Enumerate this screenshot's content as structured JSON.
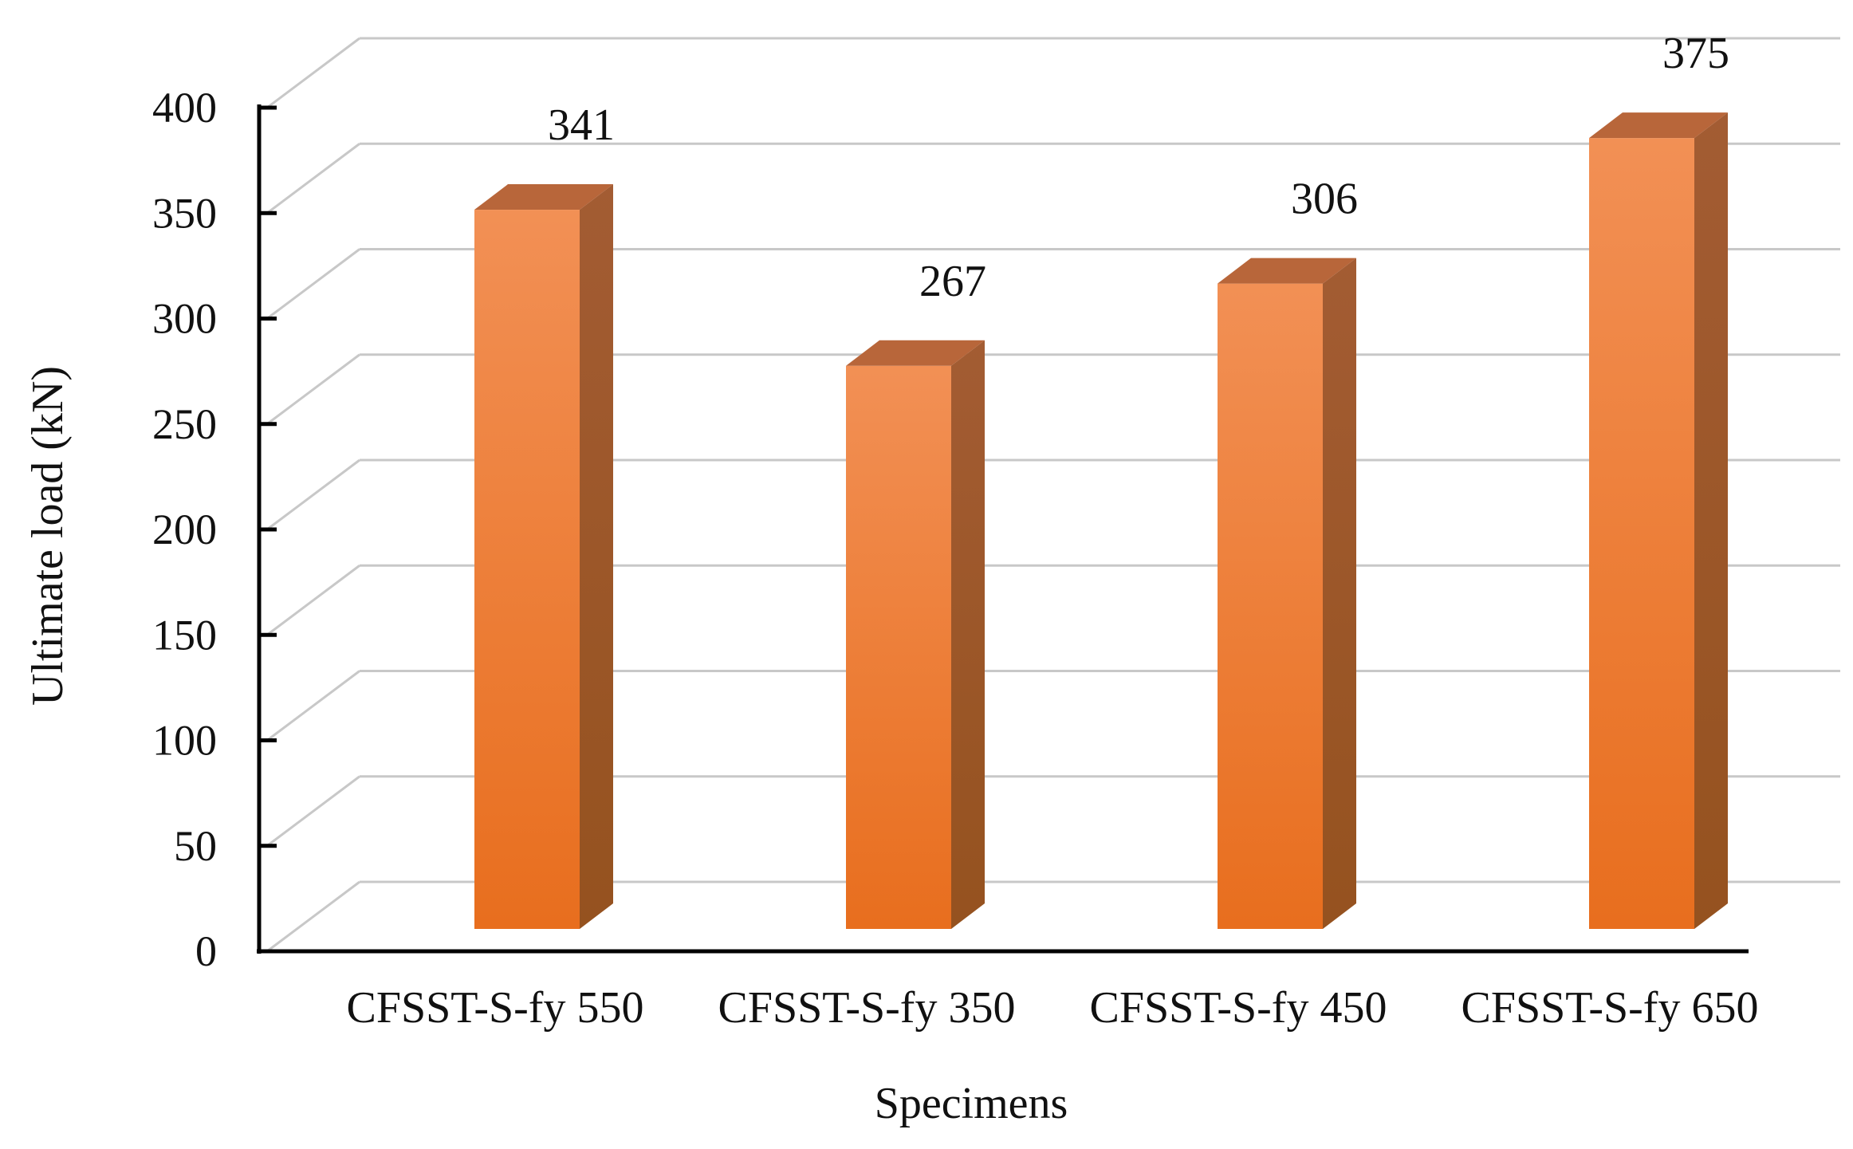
{
  "chart_data": {
    "type": "bar",
    "style": "3d-column",
    "categories": [
      "CFSST-S-fy 550",
      "CFSST-S-fy 350",
      "CFSST-S-fy 450",
      "CFSST-S-fy 650"
    ],
    "values": [
      341,
      267,
      306,
      375
    ],
    "data_labels": [
      "341",
      "267",
      "306",
      "375"
    ],
    "title": "",
    "xlabel": "Specimens",
    "ylabel": "Ultimate load  (kN)",
    "ylim": [
      0,
      400
    ],
    "yticks": [
      0,
      50,
      100,
      150,
      200,
      250,
      300,
      350,
      400
    ],
    "ytick_labels": [
      "0",
      "50",
      "100",
      "150",
      "200",
      "250",
      "300",
      "350",
      "400"
    ],
    "grid": true,
    "legend": "none",
    "colors": {
      "bar_front_light": "#f29055",
      "bar_front_dark": "#e86e1e",
      "bar_top": "#b8663a",
      "bar_side": "#95521f",
      "gridline": "#c8c8c8",
      "axis": "#000000"
    }
  }
}
